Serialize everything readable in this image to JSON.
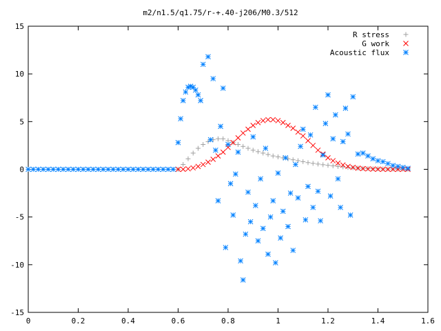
{
  "chart_data": {
    "type": "scatter",
    "title": "m2/n1.5/q1.75/r-+.40-j206/M0.3/512",
    "xlim": [
      0,
      1.6
    ],
    "ylim": [
      -15,
      15
    ],
    "x_ticks": [
      "0",
      "0.2",
      "0.4",
      "0.6",
      "0.8",
      "1",
      "1.2",
      "1.4",
      "1.6"
    ],
    "y_ticks": [
      "15",
      "10",
      "5",
      "0",
      "-5",
      "-10",
      "-15"
    ],
    "grid": false,
    "legend_position": "top-right",
    "series": [
      {
        "name": "R stress",
        "marker": "+",
        "color": "#a0a0a0",
        "x": [
          0.6,
          0.62,
          0.64,
          0.66,
          0.68,
          0.7,
          0.72,
          0.74,
          0.76,
          0.78,
          0.8,
          0.82,
          0.84,
          0.86,
          0.88,
          0.9,
          0.92,
          0.94,
          0.96,
          0.98,
          1.0,
          1.02,
          1.04,
          1.06,
          1.08,
          1.1,
          1.12,
          1.14,
          1.16,
          1.18,
          1.2,
          1.22,
          1.24,
          1.26,
          1.28,
          1.3,
          1.32,
          1.34,
          1.36,
          1.38,
          1.4,
          1.42,
          1.44,
          1.46,
          1.48,
          1.5,
          1.52
        ],
        "y": [
          0.0,
          0.5,
          1.1,
          1.7,
          2.2,
          2.6,
          2.9,
          3.1,
          3.2,
          3.2,
          3.0,
          2.8,
          2.6,
          2.4,
          2.2,
          2.0,
          1.85,
          1.7,
          1.55,
          1.4,
          1.3,
          1.2,
          1.1,
          1.0,
          0.9,
          0.8,
          0.7,
          0.62,
          0.55,
          0.48,
          0.42,
          0.36,
          0.3,
          0.25,
          0.2,
          0.16,
          0.13,
          0.1,
          0.08,
          0.06,
          0.05,
          0.04,
          0.03,
          0.02,
          0.01,
          0.01,
          0.0
        ]
      },
      {
        "name": "G work",
        "marker": "x",
        "color": "#ff0000",
        "x": [
          0.6,
          0.62,
          0.64,
          0.66,
          0.68,
          0.7,
          0.72,
          0.74,
          0.76,
          0.78,
          0.8,
          0.82,
          0.84,
          0.86,
          0.88,
          0.9,
          0.92,
          0.94,
          0.96,
          0.98,
          1.0,
          1.02,
          1.04,
          1.06,
          1.08,
          1.1,
          1.12,
          1.14,
          1.16,
          1.18,
          1.2,
          1.22,
          1.24,
          1.26,
          1.28,
          1.3,
          1.32,
          1.34,
          1.36,
          1.38,
          1.4,
          1.42,
          1.44,
          1.46,
          1.48,
          1.5,
          1.52
        ],
        "y": [
          0.0,
          0.0,
          0.05,
          0.15,
          0.3,
          0.5,
          0.75,
          1.05,
          1.4,
          1.8,
          2.3,
          2.8,
          3.3,
          3.8,
          4.2,
          4.6,
          4.9,
          5.1,
          5.2,
          5.2,
          5.1,
          4.9,
          4.6,
          4.3,
          3.9,
          3.5,
          3.0,
          2.5,
          2.0,
          1.6,
          1.2,
          0.9,
          0.65,
          0.45,
          0.3,
          0.2,
          0.12,
          0.07,
          0.04,
          0.02,
          0.01,
          0.0,
          0.0,
          0.0,
          0.0,
          0.0,
          0.0
        ]
      },
      {
        "name": "Acoustic flux",
        "marker": "*",
        "color": "#0080ff",
        "x": [
          0.0,
          0.02,
          0.04,
          0.06,
          0.08,
          0.1,
          0.12,
          0.14,
          0.16,
          0.18,
          0.2,
          0.22,
          0.24,
          0.26,
          0.28,
          0.3,
          0.32,
          0.34,
          0.36,
          0.38,
          0.4,
          0.42,
          0.44,
          0.46,
          0.48,
          0.5,
          0.52,
          0.54,
          0.56,
          0.58,
          0.6,
          0.61,
          0.62,
          0.63,
          0.64,
          0.65,
          0.66,
          0.67,
          0.68,
          0.69,
          0.7,
          0.72,
          0.73,
          0.74,
          0.75,
          0.76,
          0.77,
          0.78,
          0.79,
          0.8,
          0.81,
          0.82,
          0.83,
          0.84,
          0.85,
          0.86,
          0.87,
          0.88,
          0.89,
          0.9,
          0.91,
          0.92,
          0.93,
          0.94,
          0.95,
          0.96,
          0.97,
          0.98,
          0.99,
          1.0,
          1.01,
          1.02,
          1.03,
          1.04,
          1.05,
          1.06,
          1.07,
          1.08,
          1.09,
          1.1,
          1.11,
          1.12,
          1.13,
          1.14,
          1.15,
          1.16,
          1.17,
          1.18,
          1.19,
          1.2,
          1.21,
          1.22,
          1.23,
          1.24,
          1.25,
          1.26,
          1.27,
          1.28,
          1.29,
          1.3,
          1.32,
          1.34,
          1.36,
          1.38,
          1.4,
          1.42,
          1.44,
          1.46,
          1.48,
          1.5,
          1.52
        ],
        "y": [
          0,
          0,
          0,
          0,
          0,
          0,
          0,
          0,
          0,
          0,
          0,
          0,
          0,
          0,
          0,
          0,
          0,
          0,
          0,
          0,
          0,
          0,
          0,
          0,
          0,
          0,
          0,
          0,
          0,
          0,
          2.8,
          5.3,
          7.2,
          8.1,
          8.6,
          8.7,
          8.6,
          8.3,
          7.8,
          7.2,
          11.0,
          11.8,
          3.1,
          9.5,
          2.0,
          -3.3,
          4.5,
          8.5,
          -8.2,
          2.6,
          -1.5,
          -4.8,
          -0.5,
          1.8,
          -9.6,
          -11.6,
          -6.8,
          -2.4,
          -5.5,
          3.4,
          -3.8,
          -7.5,
          -1.0,
          -6.2,
          2.2,
          -8.9,
          -5.0,
          -3.3,
          -9.8,
          -0.4,
          -7.2,
          -4.4,
          1.2,
          -6.0,
          -2.5,
          -8.5,
          0.5,
          -3.0,
          2.4,
          4.2,
          -5.3,
          -1.8,
          3.6,
          -4.0,
          6.5,
          -2.3,
          -5.4,
          1.5,
          4.8,
          7.8,
          -2.8,
          3.2,
          5.7,
          -1.0,
          -4.0,
          2.9,
          6.4,
          3.7,
          -4.8,
          7.6,
          1.6,
          1.7,
          1.4,
          1.1,
          0.9,
          0.8,
          0.6,
          0.4,
          0.3,
          0.2,
          0.1
        ]
      }
    ]
  }
}
